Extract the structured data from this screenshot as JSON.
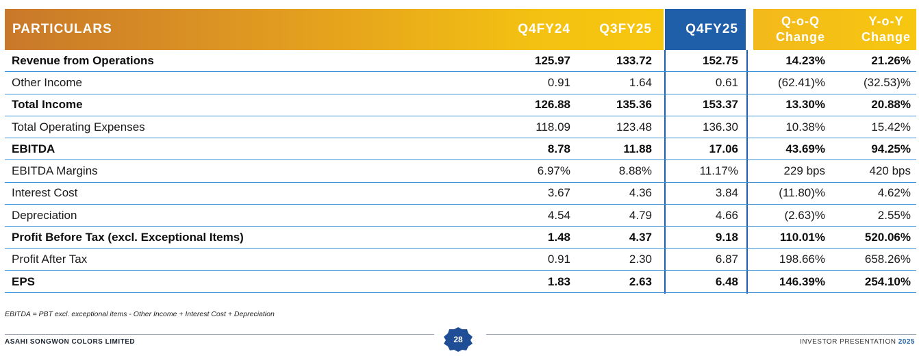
{
  "table": {
    "headers": {
      "particulars": "PARTICULARS",
      "q4fy24": "Q4FY24",
      "q3fy25": "Q3FY25",
      "q4fy25": "Q4FY25",
      "qoq_line1": "Q-o-Q",
      "qoq_line2": "Change",
      "yoy_line1": "Y-o-Y",
      "yoy_line2": "Change"
    },
    "rows": [
      {
        "label": "Revenue from Operations",
        "bold": true,
        "q4fy24": "125.97",
        "q3fy25": "133.72",
        "q4fy25": "152.75",
        "qoq": "14.23%",
        "yoy": "21.26%"
      },
      {
        "label": "Other Income",
        "bold": false,
        "q4fy24": "0.91",
        "q3fy25": "1.64",
        "q4fy25": "0.61",
        "qoq": "(62.41)%",
        "yoy": "(32.53)%"
      },
      {
        "label": "Total Income",
        "bold": true,
        "q4fy24": "126.88",
        "q3fy25": "135.36",
        "q4fy25": "153.37",
        "qoq": "13.30%",
        "yoy": "20.88%"
      },
      {
        "label": "Total Operating Expenses",
        "bold": false,
        "q4fy24": "118.09",
        "q3fy25": "123.48",
        "q4fy25": "136.30",
        "qoq": "10.38%",
        "yoy": "15.42%"
      },
      {
        "label": "EBITDA",
        "bold": true,
        "q4fy24": "8.78",
        "q3fy25": "11.88",
        "q4fy25": "17.06",
        "qoq": "43.69%",
        "yoy": "94.25%"
      },
      {
        "label": "EBITDA Margins",
        "bold": false,
        "q4fy24": "6.97%",
        "q3fy25": "8.88%",
        "q4fy25": "11.17%",
        "qoq": "229 bps",
        "yoy": "420 bps"
      },
      {
        "label": "Interest Cost",
        "bold": false,
        "q4fy24": "3.67",
        "q3fy25": "4.36",
        "q4fy25": "3.84",
        "qoq": "(11.80)%",
        "yoy": "4.62%"
      },
      {
        "label": "Depreciation",
        "bold": false,
        "q4fy24": "4.54",
        "q3fy25": "4.79",
        "q4fy25": "4.66",
        "qoq": "(2.63)%",
        "yoy": "2.55%"
      },
      {
        "label": "Profit Before Tax (excl. Exceptional Items)",
        "bold": true,
        "q4fy24": "1.48",
        "q3fy25": "4.37",
        "q4fy25": "9.18",
        "qoq": "110.01%",
        "yoy": "520.06%"
      },
      {
        "label": "Profit After Tax",
        "bold": false,
        "q4fy24": "0.91",
        "q3fy25": "2.30",
        "q4fy25": "6.87",
        "qoq": "198.66%",
        "yoy": "658.26%"
      },
      {
        "label": "EPS",
        "bold": true,
        "q4fy24": "1.83",
        "q3fy25": "2.63",
        "q4fy25": "6.48",
        "qoq": "146.39%",
        "yoy": "254.10%"
      }
    ]
  },
  "footnote": "EBITDA = PBT excl. exceptional items - Other Income + Interest Cost + Depreciation",
  "footer": {
    "company": "ASAHI SONGWON COLORS LIMITED",
    "page_number": "28",
    "presentation_label": "INVESTOR PRESENTATION",
    "year": "2025"
  },
  "colors": {
    "header_gold_start": "#c9782a",
    "header_gold_end": "#f7c70f",
    "header_blue": "#1f5ea8",
    "row_border": "#3b8fd6"
  }
}
